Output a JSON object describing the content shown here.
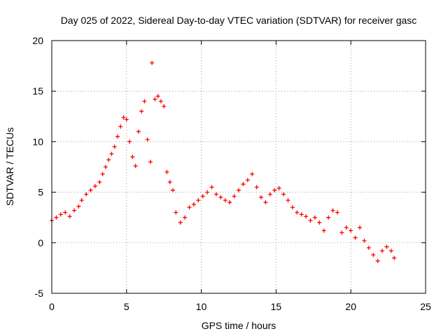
{
  "chart_data": {
    "type": "scatter",
    "title": "Day 025 of 2022, Sidereal Day-to-day VTEC variation (SDTVAR) for receiver gasc",
    "xlabel": "GPS time / hours",
    "ylabel": "SDTVAR / TECUs",
    "xlim": [
      0,
      25
    ],
    "ylim": [
      -5,
      20
    ],
    "x_ticks": [
      "0",
      "5",
      "10",
      "15",
      "20",
      "25"
    ],
    "y_ticks": [
      "-5",
      "0",
      "5",
      "10",
      "15",
      "20"
    ],
    "grid": true,
    "marker": "plus",
    "color": "#ff0000",
    "series": [
      {
        "name": "gasc",
        "x": [
          0.0,
          0.3,
          0.6,
          0.9,
          1.2,
          1.5,
          1.8,
          2.0,
          2.3,
          2.6,
          2.9,
          3.2,
          3.4,
          3.6,
          3.8,
          4.0,
          4.2,
          4.4,
          4.6,
          4.8,
          5.0,
          5.2,
          5.4,
          5.6,
          5.8,
          6.0,
          6.2,
          6.4,
          6.6,
          6.7,
          6.9,
          7.1,
          7.3,
          7.5,
          7.7,
          7.9,
          8.1,
          8.3,
          8.6,
          8.9,
          9.2,
          9.5,
          9.8,
          10.1,
          10.4,
          10.7,
          11.0,
          11.3,
          11.6,
          11.9,
          12.2,
          12.5,
          12.8,
          13.1,
          13.4,
          13.7,
          14.0,
          14.3,
          14.6,
          14.9,
          15.2,
          15.5,
          15.8,
          16.1,
          16.4,
          16.7,
          17.0,
          17.3,
          17.6,
          17.9,
          18.2,
          18.5,
          18.8,
          19.1,
          19.4,
          19.7,
          20.0,
          20.3,
          20.6,
          20.9,
          21.2,
          21.5,
          21.8,
          22.1,
          22.4,
          22.7,
          22.9
        ],
        "y": [
          2.2,
          2.5,
          2.8,
          3.0,
          2.6,
          3.2,
          3.6,
          4.2,
          4.8,
          5.2,
          5.6,
          6.0,
          6.8,
          7.5,
          8.2,
          8.8,
          9.5,
          10.5,
          11.5,
          12.4,
          12.2,
          10.0,
          8.5,
          7.6,
          11.0,
          13.0,
          14.0,
          10.2,
          8.0,
          17.8,
          14.2,
          14.5,
          14.0,
          13.5,
          7.0,
          6.0,
          5.2,
          3.0,
          2.0,
          2.5,
          3.5,
          3.8,
          4.2,
          4.6,
          5.0,
          5.5,
          4.8,
          4.5,
          4.2,
          4.0,
          4.6,
          5.2,
          5.8,
          6.2,
          6.8,
          5.5,
          4.5,
          4.0,
          4.8,
          5.2,
          5.4,
          4.8,
          4.2,
          3.5,
          3.0,
          2.8,
          2.6,
          2.2,
          2.5,
          2.0,
          1.2,
          2.5,
          3.2,
          3.0,
          1.0,
          1.5,
          1.2,
          0.5,
          1.5,
          0.2,
          -0.5,
          -1.2,
          -1.8,
          -0.8,
          -0.4,
          -0.8,
          -1.5
        ]
      }
    ]
  }
}
